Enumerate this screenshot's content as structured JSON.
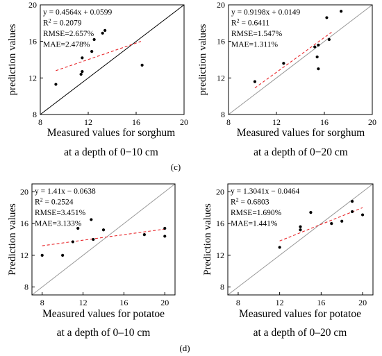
{
  "panel_labels": [
    "(c)",
    "(d)"
  ],
  "chart_data": [
    {
      "type": "scatter",
      "ylabel": "prediction values",
      "xlabel_lines": [
        "Measured values for sorghum",
        "at a depth of 0−10 cm"
      ],
      "xlim": [
        8,
        20
      ],
      "ylim": [
        8,
        20
      ],
      "xticks": [
        8,
        12,
        16,
        20
      ],
      "yticks": [
        8,
        12,
        16,
        20
      ],
      "stats": [
        "y = 0.4564x + 0.0599",
        "R2 = 0.2079",
        "RMSE=2.657%",
        "MAE=2.478%"
      ],
      "identity_line_color": "#000000",
      "fit": {
        "x": [
          9.3,
          16.4
        ],
        "y": [
          12.8,
          16.0
        ],
        "color": "#e8262a"
      },
      "points": {
        "x": [
          9.3,
          11.4,
          11.5,
          11.5,
          12.3,
          12.5,
          13.2,
          13.4,
          16.5
        ],
        "y": [
          11.3,
          12.4,
          12.7,
          14.2,
          14.9,
          16.2,
          16.9,
          17.2,
          13.4
        ]
      }
    },
    {
      "type": "scatter",
      "ylabel": "prediction values",
      "xlabel_lines": [
        "Measured values for sorghum",
        "at a depth of 0−20 cm"
      ],
      "xlim": [
        8,
        20
      ],
      "ylim": [
        8,
        20
      ],
      "xticks": [
        8,
        12,
        16,
        20
      ],
      "yticks": [
        8,
        12,
        16,
        20
      ],
      "stats": [
        "y = 0.9198x + 0.0149",
        "R2 = 0.6411",
        "RMSE=1.547%",
        "MAE=1.311%"
      ],
      "identity_line_color": "#9a9a9a",
      "fit": {
        "x": [
          10.2,
          16.6
        ],
        "y": [
          10.9,
          17.0
        ],
        "color": "#e8262a"
      },
      "points": {
        "x": [
          10.2,
          12.6,
          15.2,
          15.4,
          15.5,
          15.5,
          16.2,
          16.4,
          17.4
        ],
        "y": [
          11.6,
          13.6,
          15.4,
          14.3,
          13.0,
          15.6,
          18.6,
          16.2,
          19.3
        ]
      }
    },
    {
      "type": "scatter",
      "ylabel": "Prediction values",
      "xlabel_lines": [
        "Measured values for potatoe",
        "at a depth of 0–10 cm"
      ],
      "xlim": [
        7,
        21
      ],
      "ylim": [
        7,
        21
      ],
      "xticks": [
        8,
        12,
        16,
        20
      ],
      "yticks": [
        8,
        12,
        16,
        20
      ],
      "stats": [
        "y = 1.41x − 0.0638",
        "R2 = 0.2524",
        "RMSE=3.451%",
        "MAE=3.133%"
      ],
      "identity_line_color": "#9a9a9a",
      "fit": {
        "x": [
          8.0,
          20.0
        ],
        "y": [
          13.2,
          15.3
        ],
        "color": "#e8262a"
      },
      "points": {
        "x": [
          8.0,
          10.0,
          11.0,
          11.5,
          12.8,
          13.0,
          14.0,
          18.0,
          20.0,
          20.0
        ],
        "y": [
          12.0,
          12.0,
          13.7,
          15.4,
          16.5,
          14.0,
          15.2,
          14.6,
          15.4,
          14.4
        ]
      }
    },
    {
      "type": "scatter",
      "ylabel": "Prediction values",
      "xlabel_lines": [
        "Measured values for potatoe",
        "at a depth of 0–20 cm"
      ],
      "xlim": [
        7,
        21
      ],
      "ylim": [
        7,
        21
      ],
      "xticks": [
        8,
        12,
        16,
        20
      ],
      "yticks": [
        8,
        12,
        16,
        20
      ],
      "stats": [
        "y = 1.3041x − 0.0464",
        "R2 = 0.6803",
        "RMSE=1.690%",
        "MAE=1.441%"
      ],
      "identity_line_color": "#9a9a9a",
      "fit": {
        "x": [
          12.0,
          20.0
        ],
        "y": [
          13.8,
          18.0
        ],
        "color": "#e8262a"
      },
      "points": {
        "x": [
          12.0,
          14.0,
          14.0,
          15.0,
          17.0,
          18.0,
          19.0,
          19.0,
          20.0
        ],
        "y": [
          13.0,
          15.2,
          15.6,
          17.4,
          16.0,
          16.3,
          18.8,
          17.5,
          17.1
        ]
      }
    }
  ]
}
